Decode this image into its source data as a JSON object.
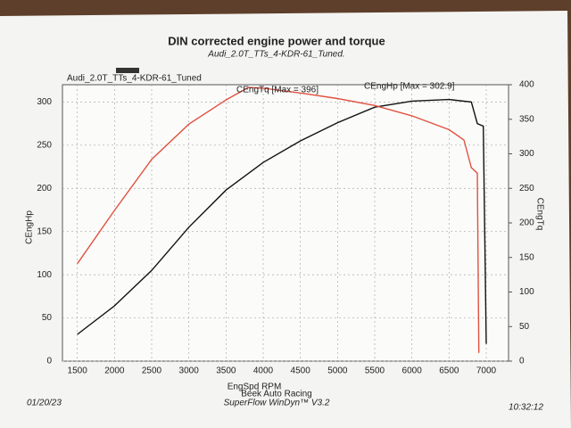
{
  "chart_data": {
    "type": "line",
    "title": "DIN corrected engine power and torque",
    "subtitle": "Audi_2.0T_TTs_4-KDR-61_Tuned.",
    "legend": {
      "label": "Audi_2.0T_TTs_4-KDR-61_Tuned",
      "color": "#333333"
    },
    "x_label": "EngSpd RPM",
    "y_label": "CEngHp",
    "y2_label": "CEngTq",
    "annotations": [
      {
        "text": "CEngTq [Max = 396]",
        "color": "#e0523f"
      },
      {
        "text": "CEngHp [Max = 302.9]",
        "color": "#111111"
      }
    ],
    "footer": [
      "Beek Auto Racing",
      "SuperFlow WinDyn™ V3.2"
    ],
    "date": "01/20/23",
    "time": "10:32:12",
    "xlim": [
      1300,
      7300
    ],
    "xticks": [
      1500,
      2000,
      2500,
      3000,
      3500,
      4000,
      4500,
      5000,
      5500,
      6000,
      6500,
      7000
    ],
    "ylim": [
      0,
      320
    ],
    "yticks": [
      0,
      50,
      100,
      150,
      200,
      250,
      300
    ],
    "y2lim": [
      0,
      400
    ],
    "y2ticks": [
      0,
      50,
      100,
      150,
      200,
      250,
      300,
      350,
      400
    ],
    "grid": true,
    "series": [
      {
        "color": "#111111",
        "x": [
          1500,
          2000,
          2500,
          3000,
          3500,
          4000,
          4500,
          5000,
          5500,
          6000,
          6500,
          6800,
          6880,
          6960,
          7000
        ],
        "values": [
          31,
          64,
          105,
          155,
          198,
          230,
          255,
          276,
          294,
          301,
          302.9,
          300,
          275,
          272,
          20
        ]
      },
      {
        "color": "#e0523f",
        "axis": "y2",
        "x": [
          1500,
          2000,
          2500,
          3000,
          3500,
          3800,
          4000,
          4500,
          5000,
          5500,
          6000,
          6500,
          6700,
          6800,
          6880,
          6900
        ],
        "values": [
          141,
          218,
          292,
          343,
          378,
          396,
          395,
          388,
          380,
          370,
          355,
          335,
          320,
          280,
          272,
          12
        ]
      }
    ]
  }
}
